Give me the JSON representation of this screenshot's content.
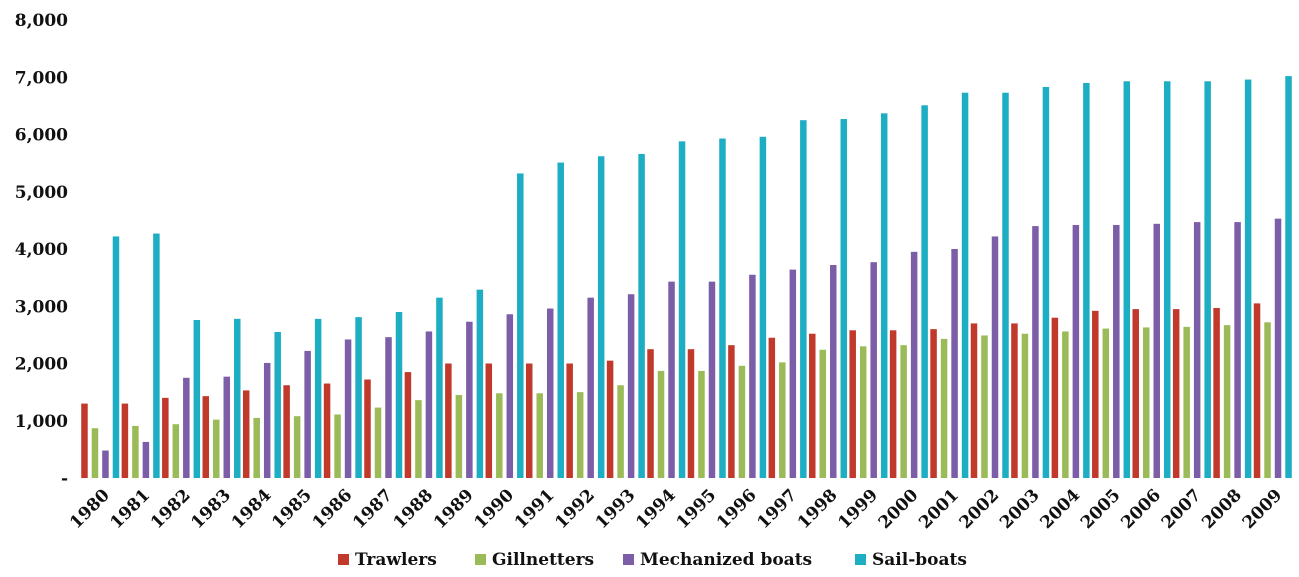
{
  "chart_data": {
    "type": "bar",
    "title": "",
    "xlabel": "",
    "ylabel": "",
    "ylim": [
      0,
      8000
    ],
    "y_ticks": [
      0,
      1000,
      2000,
      3000,
      4000,
      5000,
      6000,
      7000,
      8000
    ],
    "y_tick_labels": [
      "-",
      "1,000",
      "2,000",
      "3,000",
      "4,000",
      "5,000",
      "6,000",
      "7,000",
      "8,000"
    ],
    "grid": false,
    "legend_position": "bottom",
    "categories": [
      "1980",
      "1981",
      "1982",
      "1983",
      "1984",
      "1985",
      "1986",
      "1987",
      "1988",
      "1989",
      "1990",
      "1991",
      "1992",
      "1993",
      "1994",
      "1995",
      "1996",
      "1997",
      "1998",
      "1999",
      "2000",
      "2001",
      "2002",
      "2003",
      "2004",
      "2005",
      "2006",
      "2007",
      "2008",
      "2009"
    ],
    "series": [
      {
        "name": "Trawlers",
        "color": "#c0392b",
        "values": [
          1300,
          1300,
          1400,
          1430,
          1530,
          1620,
          1650,
          1720,
          1850,
          2000,
          2000,
          2000,
          2000,
          2050,
          2250,
          2250,
          2320,
          2450,
          2520,
          2580,
          2580,
          2600,
          2700,
          2700,
          2800,
          2920,
          2950,
          2950,
          2970,
          3050
        ]
      },
      {
        "name": "Gillnetters",
        "color": "#9bbb59",
        "values": [
          870,
          910,
          940,
          1020,
          1050,
          1080,
          1110,
          1230,
          1360,
          1450,
          1480,
          1480,
          1500,
          1620,
          1870,
          1870,
          1960,
          2020,
          2240,
          2300,
          2320,
          2430,
          2490,
          2520,
          2560,
          2610,
          2630,
          2640,
          2670,
          2720
        ]
      },
      {
        "name": "Mechanized boats",
        "color": "#7b5ea7",
        "values": [
          480,
          630,
          1750,
          1770,
          2010,
          2220,
          2420,
          2460,
          2560,
          2730,
          2860,
          2960,
          3150,
          3210,
          3430,
          3430,
          3550,
          3640,
          3720,
          3770,
          3950,
          4000,
          4220,
          4400,
          4420,
          4420,
          4440,
          4470,
          4470,
          4530
        ]
      },
      {
        "name": "Sail-boats",
        "color": "#1eaec4",
        "values": [
          4220,
          4270,
          2760,
          2780,
          2550,
          2780,
          2810,
          2900,
          3150,
          3290,
          5320,
          5510,
          5620,
          5660,
          5880,
          5930,
          5960,
          6250,
          6270,
          6370,
          6510,
          6730,
          6730,
          6830,
          6900,
          6930,
          6930,
          6930,
          6960,
          7020
        ]
      }
    ]
  }
}
